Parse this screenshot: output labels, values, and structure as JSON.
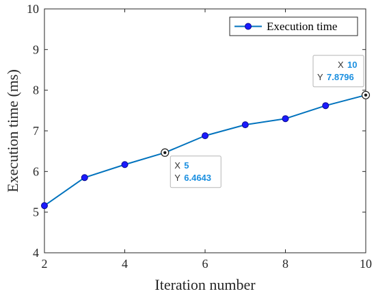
{
  "chart_data": {
    "type": "line",
    "xlabel": "Iteration number",
    "ylabel": "Execution time (ms)",
    "xlim": [
      2,
      10
    ],
    "ylim": [
      4,
      10
    ],
    "xticks": [
      2,
      4,
      6,
      8,
      10
    ],
    "yticks": [
      4,
      5,
      6,
      7,
      8,
      9,
      10
    ],
    "grid": false,
    "legend_position": "top-right",
    "series": [
      {
        "name": "Execution time",
        "color": "#0072bd",
        "marker_color": "#1a1aff",
        "x": [
          2,
          3,
          4,
          5,
          6,
          7,
          8,
          9,
          10
        ],
        "y": [
          5.16,
          5.85,
          6.17,
          6.4643,
          6.88,
          7.15,
          7.3,
          7.62,
          7.8796
        ]
      }
    ],
    "datatips": [
      {
        "x_key": "X",
        "x_value": "5",
        "y_key": "Y",
        "y_value": "6.4643",
        "point_index": 3
      },
      {
        "x_key": "X",
        "x_value": "10",
        "y_key": "Y",
        "y_value": "7.8796",
        "point_index": 8
      }
    ]
  }
}
